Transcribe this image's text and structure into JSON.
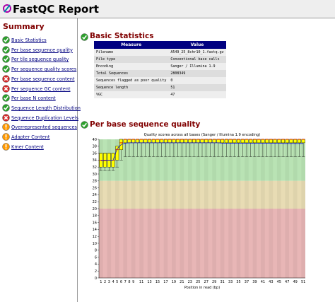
{
  "header": {
    "title": "FastQC Report"
  },
  "summary": {
    "title": "Summary",
    "modules": [
      {
        "label": "Basic Statistics",
        "status": "pass"
      },
      {
        "label": "Per base sequence quality",
        "status": "pass"
      },
      {
        "label": "Per tile sequence quality",
        "status": "pass"
      },
      {
        "label": "Per sequence quality scores",
        "status": "pass"
      },
      {
        "label": "Per base sequence content",
        "status": "fail"
      },
      {
        "label": "Per sequence GC content",
        "status": "fail"
      },
      {
        "label": "Per base N content",
        "status": "pass"
      },
      {
        "label": "Sequence Length Distribution",
        "status": "pass"
      },
      {
        "label": "Sequence Duplication Levels",
        "status": "fail"
      },
      {
        "label": "Overrepresented sequences",
        "status": "warn"
      },
      {
        "label": "Adapter Content",
        "status": "warn"
      },
      {
        "label": "Kmer Content",
        "status": "warn"
      }
    ]
  },
  "basic_statistics": {
    "title": "Basic Statistics",
    "status": "pass",
    "table": {
      "columns": [
        "Measure",
        "Value"
      ],
      "rows": [
        [
          "Filename",
          "A549_25_8chr10_1.fastq.gz"
        ],
        [
          "File type",
          "Conventional base calls"
        ],
        [
          "Encoding",
          "Sanger / Illumina 1.9"
        ],
        [
          "Total Sequences",
          2808349
        ],
        [
          "Sequences flagged as poor quality",
          0
        ],
        [
          "Sequence length",
          51
        ],
        [
          "%GC",
          47
        ]
      ]
    }
  },
  "per_base_quality": {
    "title": "Per base sequence quality",
    "status": "pass",
    "chart": {
      "type": "box",
      "title": "Quality scores across all bases (Sanger / Illumina 1.9 encoding)",
      "xlabel": "Position in read (bp)",
      "categories": [
        1,
        2,
        3,
        4,
        5,
        6,
        7,
        8,
        9,
        null,
        11,
        null,
        13,
        null,
        15,
        null,
        17,
        null,
        19,
        null,
        21,
        null,
        23,
        null,
        25,
        null,
        27,
        null,
        29,
        null,
        31,
        null,
        33,
        null,
        35,
        null,
        37,
        null,
        39,
        null,
        41,
        null,
        43,
        null,
        45,
        null,
        47,
        null,
        49,
        null,
        51
      ],
      "low": [
        31,
        31,
        31,
        31,
        32,
        34,
        35,
        35,
        35,
        35,
        35,
        35,
        35,
        35,
        35,
        35,
        35,
        35,
        35,
        35,
        35,
        35,
        35,
        35,
        35,
        35,
        35,
        35,
        35,
        35,
        35,
        35,
        35,
        35,
        35,
        35,
        35,
        35,
        35,
        35,
        35,
        35,
        35,
        35,
        35,
        35,
        35,
        35,
        35,
        35,
        35
      ],
      "q1": [
        32,
        32,
        32,
        32,
        34,
        37,
        39,
        39,
        39,
        39,
        39,
        39,
        39,
        39,
        39,
        39,
        39,
        39,
        39,
        39,
        39,
        39,
        39,
        39,
        39,
        39,
        39,
        39,
        39,
        39,
        39,
        39,
        39,
        39,
        39,
        39,
        39,
        39,
        39,
        39,
        39,
        39,
        39,
        39,
        39,
        39,
        39,
        39,
        39,
        39,
        39
      ],
      "median": [
        34,
        34,
        34,
        34,
        37,
        39,
        40,
        40,
        40,
        40,
        40,
        40,
        40,
        40,
        40,
        40,
        40,
        40,
        40,
        40,
        40,
        40,
        40,
        40,
        40,
        40,
        40,
        40,
        40,
        40,
        40,
        40,
        40,
        40,
        40,
        40,
        40,
        40,
        40,
        40,
        40,
        40,
        40,
        40,
        40,
        40,
        40,
        40,
        40,
        40,
        40
      ],
      "q3": [
        36,
        36,
        36,
        36,
        38,
        40,
        40,
        40,
        40,
        40,
        40,
        40,
        40,
        40,
        40,
        40,
        40,
        40,
        40,
        40,
        40,
        40,
        40,
        40,
        40,
        40,
        40,
        40,
        40,
        40,
        40,
        40,
        40,
        40,
        40,
        40,
        40,
        40,
        40,
        40,
        40,
        40,
        40,
        40,
        40,
        40,
        40,
        40,
        40,
        40,
        40
      ],
      "high": [
        36,
        36,
        36,
        36,
        38,
        40,
        40,
        40,
        40,
        40,
        40,
        40,
        40,
        40,
        40,
        40,
        40,
        40,
        40,
        40,
        40,
        40,
        40,
        40,
        40,
        40,
        40,
        40,
        40,
        40,
        40,
        40,
        40,
        40,
        40,
        40,
        40,
        40,
        40,
        40,
        40,
        40,
        40,
        40,
        40,
        40,
        40,
        40,
        40,
        40,
        40
      ],
      "mean": [
        33.9,
        33.9,
        34.0,
        34.0,
        37.3,
        38.5,
        38.9,
        39.0,
        39.0,
        39.0,
        39.0,
        39.0,
        39.0,
        39.0,
        39.0,
        39.0,
        39.0,
        39.0,
        39.0,
        39.0,
        39.0,
        39.0,
        39.0,
        39.0,
        39.0,
        39.0,
        39.0,
        39.0,
        39.0,
        39.0,
        38.9,
        38.9,
        38.9,
        38.9,
        38.9,
        38.9,
        38.9,
        38.9,
        38.9,
        38.9,
        38.9,
        38.9,
        38.9,
        38.9,
        38.9,
        38.8,
        38.8,
        38.8,
        38.8,
        38.8,
        38.8
      ],
      "ylim": [
        0,
        40
      ],
      "yticks": [
        0,
        2,
        4,
        6,
        8,
        10,
        12,
        14,
        16,
        18,
        20,
        22,
        24,
        26,
        28,
        30,
        32,
        34,
        36,
        38,
        40
      ],
      "bands": [
        {
          "range": [
            28,
            40
          ],
          "color": "#b9e3b4"
        },
        {
          "range": [
            20,
            28
          ],
          "color": "#e8dcb4"
        },
        {
          "range": [
            0,
            20
          ],
          "color": "#e8b6b6"
        }
      ],
      "box_color": "#ffff00",
      "median_color": "#e00000",
      "mean_color": "#0000e0"
    }
  }
}
